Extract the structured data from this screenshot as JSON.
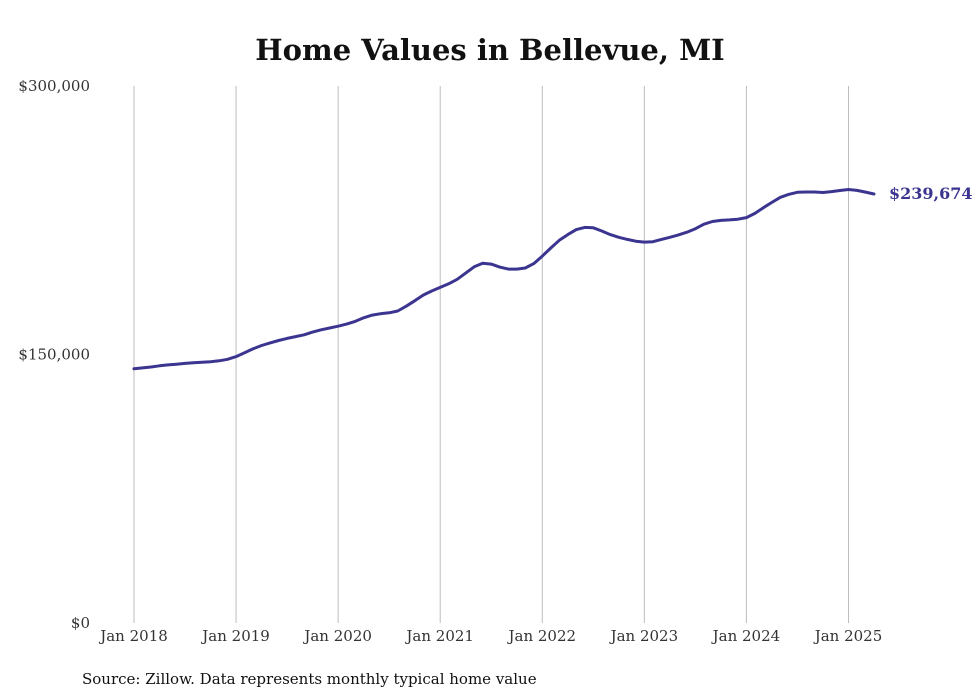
{
  "chart_data": {
    "type": "line",
    "title": "Home Values in Bellevue, MI",
    "source": "Source: Zillow. Data represents monthly typical home value",
    "ylim": [
      0,
      300000
    ],
    "yticks": [
      0,
      150000,
      300000
    ],
    "ytick_labels": [
      "$0",
      "$150,000",
      "$300,000"
    ],
    "xlim": [
      "2018-01",
      "2025-04"
    ],
    "xticks": [
      "2018-01",
      "2019-01",
      "2020-01",
      "2021-01",
      "2022-01",
      "2023-01",
      "2024-01",
      "2025-01"
    ],
    "xtick_labels": [
      "Jan 2018",
      "Jan 2019",
      "Jan 2020",
      "Jan 2021",
      "Jan 2022",
      "Jan 2023",
      "Jan 2024",
      "Jan 2025"
    ],
    "grid": "vertical",
    "line_color": "#3b3590",
    "end_label": "$239,674",
    "series": [
      {
        "x": [
          "2018-01",
          "2018-02",
          "2018-03",
          "2018-04",
          "2018-05",
          "2018-06",
          "2018-07",
          "2018-08",
          "2018-09",
          "2018-10",
          "2018-11",
          "2018-12",
          "2019-01",
          "2019-02",
          "2019-03",
          "2019-04",
          "2019-05",
          "2019-06",
          "2019-07",
          "2019-08",
          "2019-09",
          "2019-10",
          "2019-11",
          "2019-12",
          "2020-01",
          "2020-02",
          "2020-03",
          "2020-04",
          "2020-05",
          "2020-06",
          "2020-07",
          "2020-08",
          "2020-09",
          "2020-10",
          "2020-11",
          "2020-12",
          "2021-01",
          "2021-02",
          "2021-03",
          "2021-04",
          "2021-05",
          "2021-06",
          "2021-07",
          "2021-08",
          "2021-09",
          "2021-10",
          "2021-11",
          "2021-12",
          "2022-01",
          "2022-02",
          "2022-03",
          "2022-04",
          "2022-05",
          "2022-06",
          "2022-07",
          "2022-08",
          "2022-09",
          "2022-10",
          "2022-11",
          "2022-12",
          "2023-01",
          "2023-02",
          "2023-03",
          "2023-04",
          "2023-05",
          "2023-06",
          "2023-07",
          "2023-08",
          "2023-09",
          "2023-10",
          "2023-11",
          "2023-12",
          "2024-01",
          "2024-02",
          "2024-03",
          "2024-04",
          "2024-05",
          "2024-06",
          "2024-07",
          "2024-08",
          "2024-09",
          "2024-10",
          "2024-11",
          "2024-12",
          "2025-01",
          "2025-02",
          "2025-03",
          "2025-04"
        ],
        "values": [
          142000,
          142500,
          143000,
          143700,
          144200,
          144600,
          145000,
          145400,
          145700,
          146000,
          146500,
          147300,
          148800,
          151000,
          153200,
          155000,
          156500,
          157800,
          159000,
          160000,
          161000,
          162500,
          163800,
          164800,
          165800,
          167000,
          168500,
          170500,
          172000,
          172800,
          173300,
          174300,
          177000,
          180000,
          183200,
          185500,
          187500,
          189500,
          192000,
          195500,
          199000,
          201000,
          200500,
          198800,
          197700,
          197700,
          198300,
          200800,
          205000,
          209500,
          213800,
          217000,
          219800,
          221000,
          220800,
          219000,
          217000,
          215500,
          214300,
          213300,
          212800,
          213000,
          214300,
          215500,
          216800,
          218300,
          220300,
          222800,
          224300,
          224900,
          225200,
          225600,
          226500,
          228800,
          232000,
          235000,
          237800,
          239500,
          240600,
          240800,
          240800,
          240500,
          241000,
          241600,
          242200,
          241700,
          240700,
          239674
        ]
      }
    ]
  }
}
